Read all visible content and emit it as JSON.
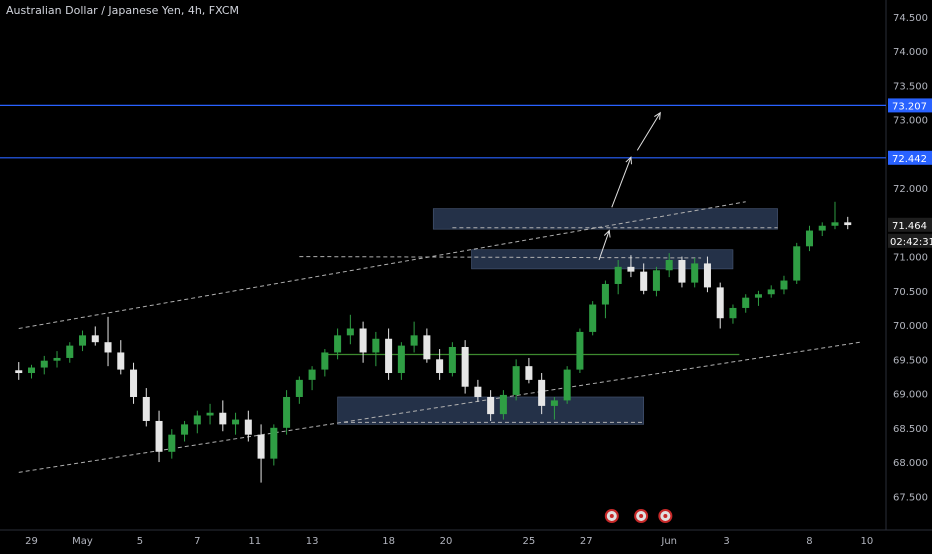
{
  "header": {
    "title": "Australian Dollar / Japanese Yen, 4h, FXCM"
  },
  "colors": {
    "background": "#000000",
    "bull_candle": "#2f9e44",
    "bear_candle": "#e6e6e6",
    "level_line": "#2962ff",
    "zone_fill": "#2a3a55",
    "support_line": "#3d8a2f",
    "axis_text": "#b2b5be",
    "trend_line": "#b0b0b0"
  },
  "chart_data": {
    "type": "candlestick",
    "title": "Australian Dollar / Japanese Yen, 4h, FXCM",
    "xlabel": "",
    "ylabel": "",
    "ylim": [
      67.3,
      74.6
    ],
    "x_range": [
      -1,
      68
    ],
    "grid": false,
    "y_ticks": [
      "74.500",
      "74.000",
      "73.500",
      "73.000",
      "72.500",
      "72.000",
      "71.500",
      "71.000",
      "70.500",
      "70.000",
      "69.500",
      "69.000",
      "68.500",
      "68.000",
      "67.500"
    ],
    "x_ticks": [
      {
        "label": "29",
        "x": 1
      },
      {
        "label": "May",
        "x": 5
      },
      {
        "label": "5",
        "x": 9.5
      },
      {
        "label": "7",
        "x": 14
      },
      {
        "label": "11",
        "x": 18.5
      },
      {
        "label": "13",
        "x": 23
      },
      {
        "label": "18",
        "x": 29
      },
      {
        "label": "20",
        "x": 33.5
      },
      {
        "label": "25",
        "x": 40
      },
      {
        "label": "27",
        "x": 44.5
      },
      {
        "label": "Jun",
        "x": 51
      },
      {
        "label": "3",
        "x": 55.5
      },
      {
        "label": "8",
        "x": 62
      },
      {
        "label": "10",
        "x": 66.5
      }
    ],
    "price_labels": [
      {
        "id": "level_high",
        "value": "73.207"
      },
      {
        "id": "level_low",
        "value": "72.442"
      },
      {
        "id": "last_price",
        "value": "71.464"
      },
      {
        "id": "countdown",
        "value": "02:42:31"
      }
    ],
    "horizontal_levels": [
      73.207,
      72.442
    ],
    "zones": [
      {
        "x0": 32.5,
        "x1": 59.5,
        "y_top": 71.7,
        "y_bottom": 71.4
      },
      {
        "x0": 35.5,
        "x1": 56,
        "y_top": 71.1,
        "y_bottom": 70.82
      },
      {
        "x0": 25,
        "x1": 49,
        "y_top": 68.95,
        "y_bottom": 68.55
      }
    ],
    "support_line": {
      "x0": 24,
      "x1": 56.5,
      "y": 69.57
    },
    "dashed_lines": [
      {
        "x0": 0,
        "y0": 69.95,
        "x1": 57,
        "y1": 71.8
      },
      {
        "x0": 0,
        "y0": 67.85,
        "x1": 66,
        "y1": 69.75
      },
      {
        "x0": 22,
        "y0": 71.0,
        "x1": 53.5,
        "y1": 70.98
      },
      {
        "x0": 34,
        "y0": 71.42,
        "x1": 59.5,
        "y1": 71.42
      },
      {
        "x0": 25.5,
        "y0": 68.58,
        "x1": 49,
        "y1": 68.58
      }
    ],
    "arrows": [
      {
        "x0": 45.5,
        "y0": 70.95,
        "x1": 46.3,
        "y1": 71.38
      },
      {
        "x0": 46.5,
        "y0": 71.72,
        "x1": 48,
        "y1": 72.45
      },
      {
        "x0": 48.5,
        "y0": 72.55,
        "x1": 50.3,
        "y1": 73.1
      }
    ],
    "event_markers": [
      46.5,
      48.8,
      50.7
    ],
    "candles": [
      [
        69.34,
        69.46,
        69.2,
        69.3
      ],
      [
        69.3,
        69.42,
        69.22,
        69.38
      ],
      [
        69.38,
        69.55,
        69.28,
        69.48
      ],
      [
        69.48,
        69.62,
        69.38,
        69.52
      ],
      [
        69.52,
        69.75,
        69.45,
        69.7
      ],
      [
        69.7,
        69.92,
        69.62,
        69.85
      ],
      [
        69.85,
        69.98,
        69.7,
        69.75
      ],
      [
        69.75,
        70.12,
        69.4,
        69.6
      ],
      [
        69.6,
        69.78,
        69.28,
        69.35
      ],
      [
        69.35,
        69.45,
        68.85,
        68.95
      ],
      [
        68.95,
        69.08,
        68.52,
        68.6
      ],
      [
        68.6,
        68.75,
        68.0,
        68.15
      ],
      [
        68.15,
        68.48,
        68.05,
        68.4
      ],
      [
        68.4,
        68.6,
        68.3,
        68.55
      ],
      [
        68.55,
        68.75,
        68.42,
        68.68
      ],
      [
        68.68,
        68.85,
        68.55,
        68.72
      ],
      [
        68.72,
        68.9,
        68.45,
        68.55
      ],
      [
        68.55,
        68.72,
        68.4,
        68.62
      ],
      [
        68.62,
        68.75,
        68.3,
        68.4
      ],
      [
        68.4,
        68.55,
        67.7,
        68.05
      ],
      [
        68.05,
        68.55,
        67.95,
        68.5
      ],
      [
        68.5,
        69.05,
        68.4,
        68.95
      ],
      [
        68.95,
        69.25,
        68.85,
        69.2
      ],
      [
        69.2,
        69.4,
        69.05,
        69.35
      ],
      [
        69.35,
        69.65,
        69.25,
        69.6
      ],
      [
        69.6,
        69.95,
        69.5,
        69.85
      ],
      [
        69.85,
        70.15,
        69.72,
        69.95
      ],
      [
        69.95,
        70.05,
        69.45,
        69.6
      ],
      [
        69.6,
        69.9,
        69.4,
        69.8
      ],
      [
        69.8,
        69.95,
        69.2,
        69.3
      ],
      [
        69.3,
        69.75,
        69.2,
        69.7
      ],
      [
        69.7,
        70.05,
        69.6,
        69.85
      ],
      [
        69.85,
        69.95,
        69.45,
        69.5
      ],
      [
        69.5,
        69.65,
        69.2,
        69.3
      ],
      [
        69.3,
        69.75,
        69.25,
        69.68
      ],
      [
        69.68,
        69.78,
        69.0,
        69.1
      ],
      [
        69.1,
        69.2,
        68.88,
        68.95
      ],
      [
        68.95,
        69.05,
        68.6,
        68.7
      ],
      [
        68.7,
        69.05,
        68.62,
        68.98
      ],
      [
        68.98,
        69.5,
        68.9,
        69.4
      ],
      [
        69.4,
        69.52,
        69.15,
        69.2
      ],
      [
        69.2,
        69.3,
        68.7,
        68.82
      ],
      [
        68.82,
        68.95,
        68.62,
        68.9
      ],
      [
        68.9,
        69.4,
        68.85,
        69.35
      ],
      [
        69.35,
        69.95,
        69.3,
        69.9
      ],
      [
        69.9,
        70.35,
        69.85,
        70.3
      ],
      [
        70.3,
        70.65,
        70.1,
        70.6
      ],
      [
        70.6,
        70.95,
        70.45,
        70.85
      ],
      [
        70.85,
        71.02,
        70.7,
        70.78
      ],
      [
        70.78,
        70.9,
        70.45,
        70.5
      ],
      [
        70.5,
        70.85,
        70.42,
        70.8
      ],
      [
        70.8,
        71.05,
        70.7,
        70.95
      ],
      [
        70.95,
        71.0,
        70.55,
        70.62
      ],
      [
        70.62,
        70.98,
        70.55,
        70.9
      ],
      [
        70.9,
        71.0,
        70.48,
        70.55
      ],
      [
        70.55,
        70.62,
        69.95,
        70.1
      ],
      [
        70.1,
        70.3,
        70.02,
        70.25
      ],
      [
        70.25,
        70.45,
        70.18,
        70.4
      ],
      [
        70.4,
        70.5,
        70.28,
        70.45
      ],
      [
        70.45,
        70.58,
        70.4,
        70.52
      ],
      [
        70.52,
        70.72,
        70.45,
        70.65
      ],
      [
        70.65,
        71.2,
        70.6,
        71.15
      ],
      [
        71.15,
        71.45,
        71.08,
        71.38
      ],
      [
        71.38,
        71.5,
        71.3,
        71.45
      ],
      [
        71.45,
        71.8,
        71.4,
        71.5
      ],
      [
        71.5,
        71.58,
        71.4,
        71.46
      ]
    ]
  }
}
